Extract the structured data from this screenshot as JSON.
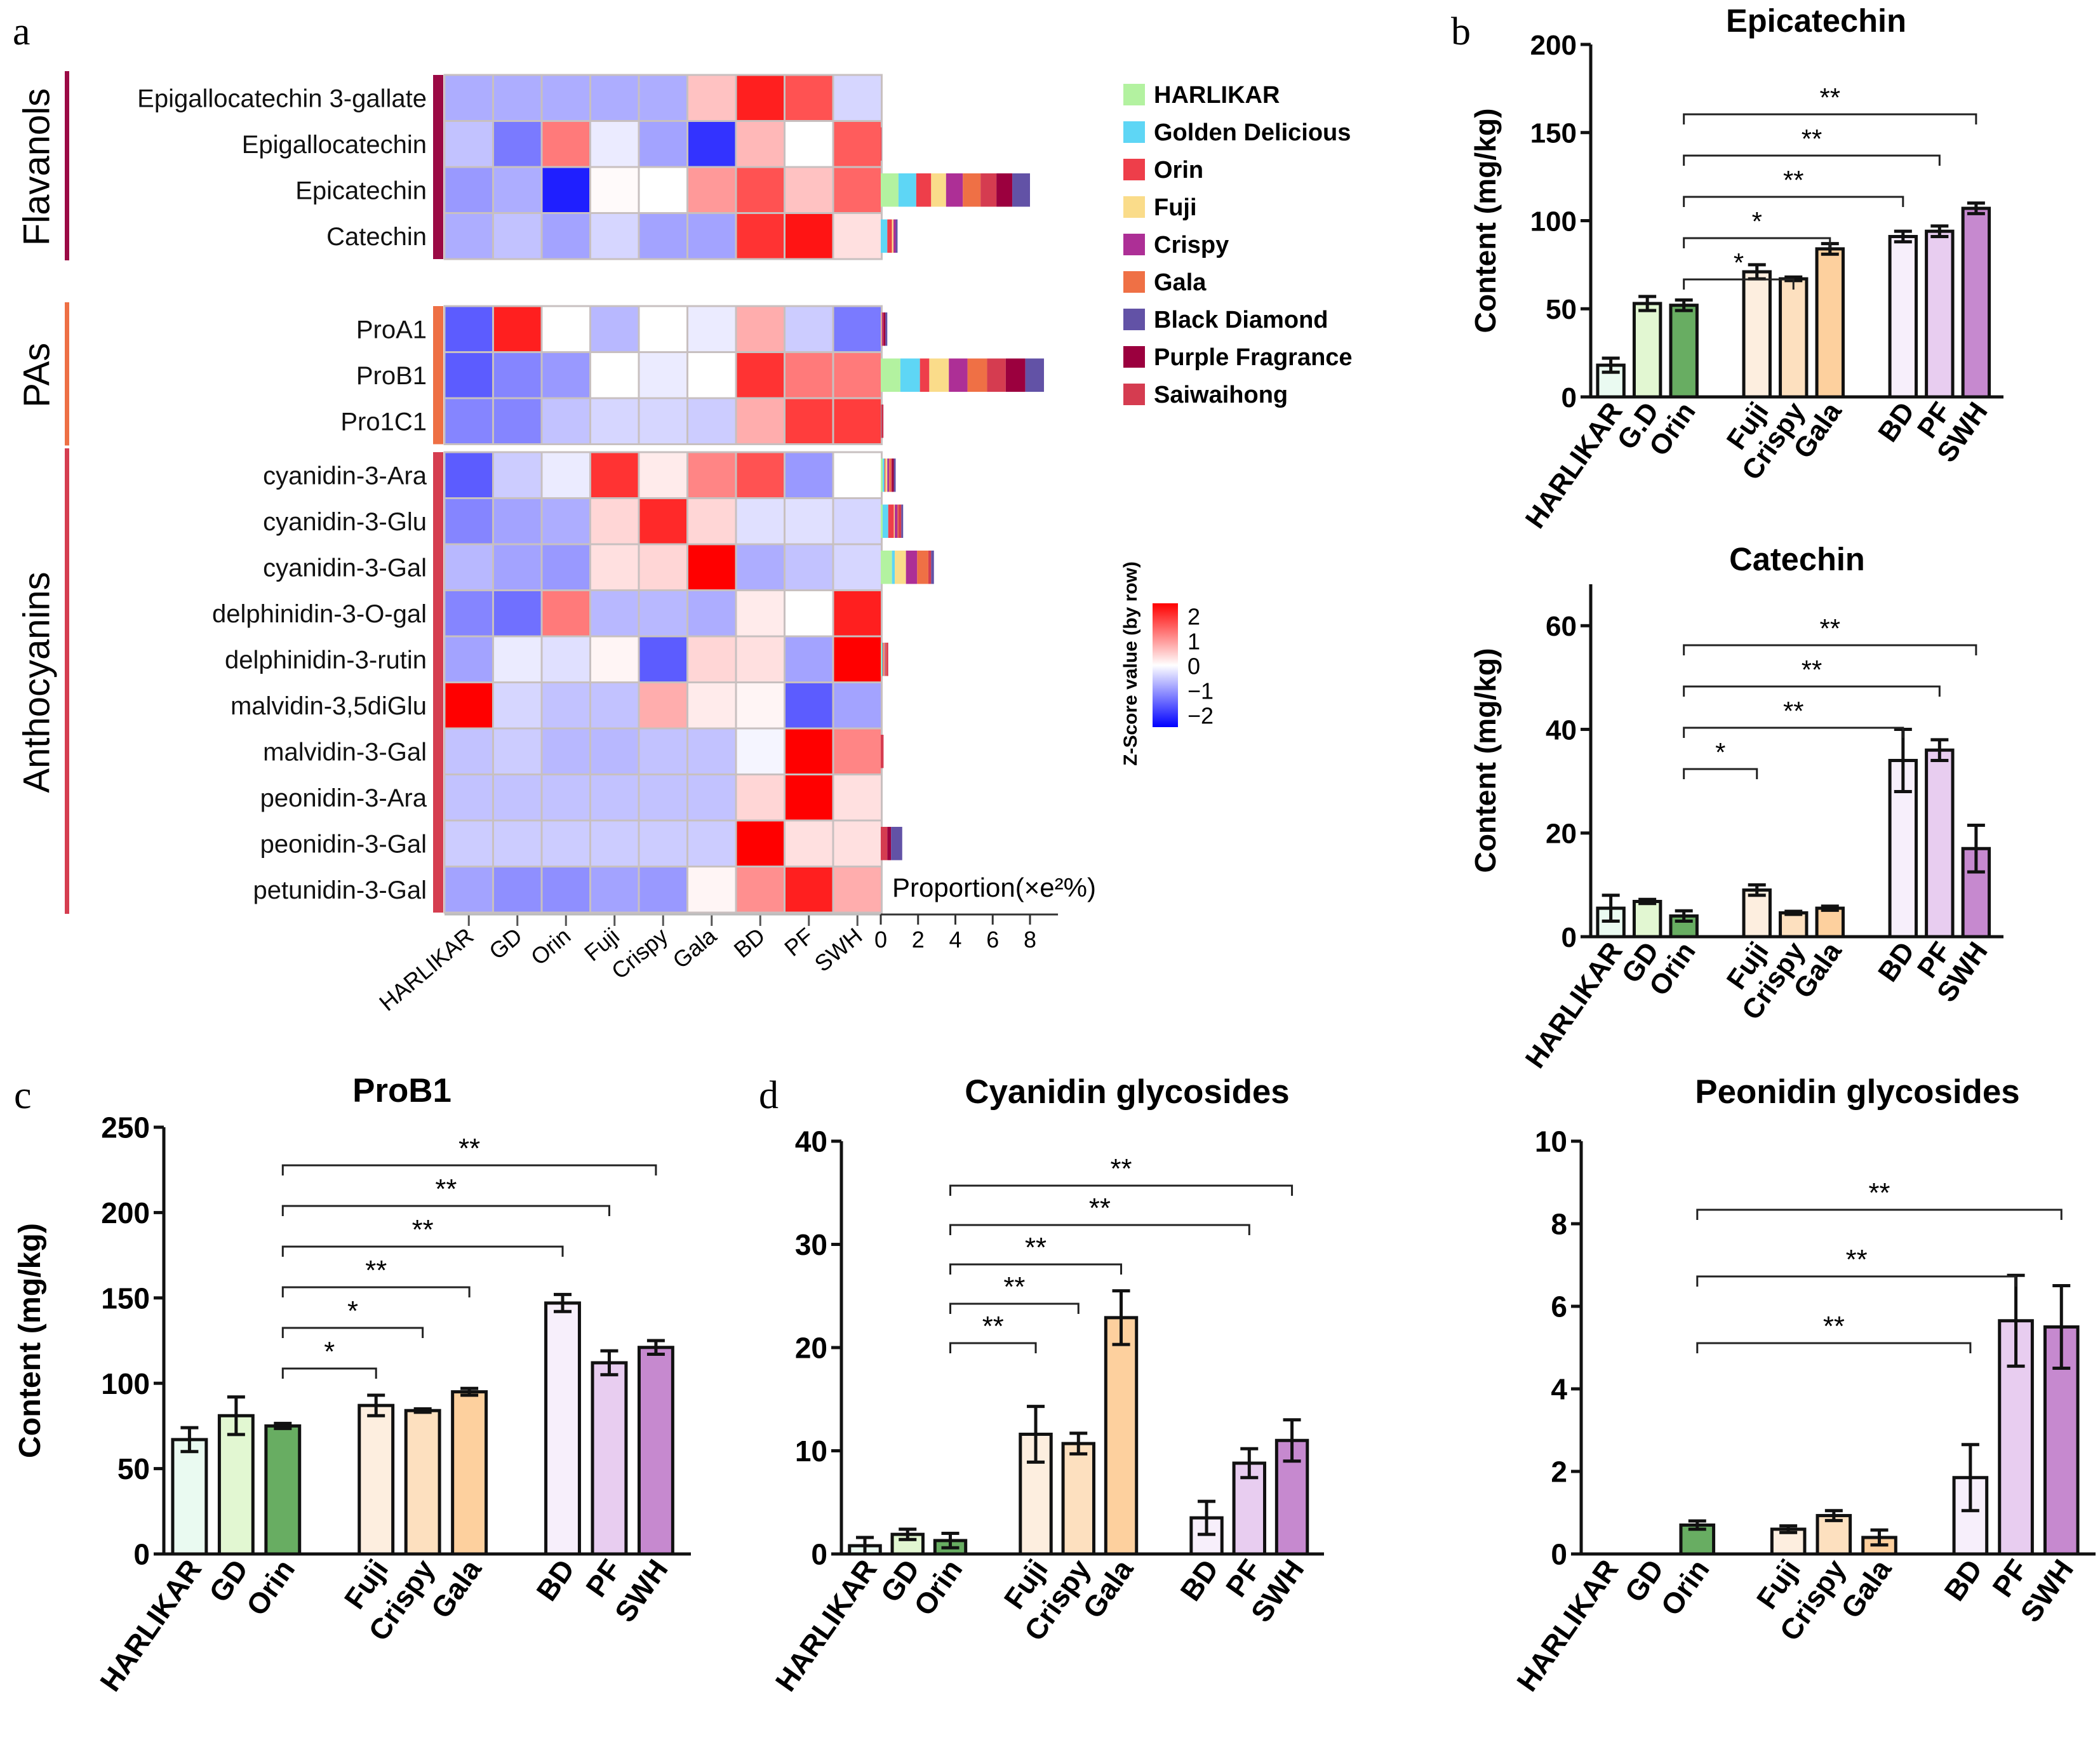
{
  "panel_labels": {
    "a": "a",
    "b": "b",
    "c": "c",
    "d": "d"
  },
  "chart_data": [
    {
      "type": "heatmap",
      "panel": "a",
      "title": "",
      "columns": [
        "HARLIKAR",
        "GD",
        "Orin",
        "Fuji",
        "Crispy",
        "Gala",
        "BD",
        "PF",
        "SWH"
      ],
      "groups": [
        {
          "name": "Flavanols",
          "color": "#9b0a45",
          "rows": [
            "Epigallocatechin 3-gallate",
            "Epigallocatechin",
            "Epicatechin",
            "Catechin"
          ]
        },
        {
          "name": "PAs",
          "color": "#ee7045",
          "rows": [
            "ProA1",
            "ProB1",
            "Pro1C1"
          ]
        },
        {
          "name": "Anthocyanins",
          "color": "#d53e50",
          "rows": [
            "cyanidin-3-Ara",
            "cyanidin-3-Glu",
            "cyanidin-3-Gal",
            "delphinidin-3-O-gal",
            "delphinidin-3-rutin",
            "malvidin-3,5diGlu",
            "malvidin-3-Gal",
            "peonidin-3-Ara",
            "peonidin-3-Gal",
            "petunidin-3-Gal"
          ]
        }
      ],
      "z_values": [
        [
          -0.8,
          -0.8,
          -0.8,
          -0.8,
          -0.8,
          0.6,
          2.2,
          1.7,
          -0.4
        ],
        [
          -0.6,
          -1.3,
          1.3,
          -0.2,
          -0.9,
          -2.0,
          0.7,
          0.0,
          1.6
        ],
        [
          -1.0,
          -0.8,
          -2.2,
          0.05,
          0.0,
          1.0,
          1.7,
          0.6,
          1.5
        ],
        [
          -0.8,
          -0.6,
          -0.9,
          -0.4,
          -0.9,
          -0.9,
          2.0,
          2.3,
          0.3
        ],
        [
          -1.6,
          2.2,
          0.0,
          -0.7,
          0.0,
          -0.2,
          0.8,
          -0.5,
          -1.3
        ],
        [
          -1.6,
          -1.2,
          -1.0,
          0.0,
          -0.2,
          0.0,
          2.0,
          1.3,
          1.3
        ],
        [
          -1.2,
          -1.2,
          -0.6,
          -0.4,
          -0.4,
          -0.5,
          0.8,
          1.9,
          1.9
        ],
        [
          -1.6,
          -0.5,
          -0.2,
          2.0,
          0.2,
          1.2,
          1.7,
          -1.0,
          0.0
        ],
        [
          -1.2,
          -0.9,
          -0.8,
          0.4,
          2.1,
          0.4,
          -0.3,
          -0.3,
          -0.4
        ],
        [
          -0.7,
          -0.9,
          -1.0,
          0.3,
          0.4,
          2.5,
          -0.8,
          -0.6,
          -0.4
        ],
        [
          -1.2,
          -1.4,
          1.3,
          -0.7,
          -0.7,
          -0.8,
          0.2,
          0.0,
          2.2
        ],
        [
          -0.9,
          -0.2,
          -0.3,
          0.1,
          -1.6,
          0.4,
          0.3,
          -0.9,
          2.5
        ],
        [
          2.5,
          -0.4,
          -0.6,
          -0.6,
          0.8,
          0.2,
          0.1,
          -1.6,
          -0.9
        ],
        [
          -0.6,
          -0.5,
          -0.7,
          -0.7,
          -0.6,
          -0.6,
          -0.1,
          2.5,
          1.2
        ],
        [
          -0.6,
          -0.6,
          -0.6,
          -0.6,
          -0.6,
          -0.6,
          0.4,
          2.5,
          0.3
        ],
        [
          -0.5,
          -0.5,
          -0.5,
          -0.5,
          -0.5,
          -0.5,
          2.5,
          0.3,
          0.3
        ],
        [
          -0.9,
          -1.1,
          -1.1,
          -0.9,
          -1.0,
          0.1,
          1.1,
          2.2,
          0.8
        ]
      ],
      "colorbar": {
        "title": "Z-Score value (by row)",
        "ticks": [
          2,
          1,
          0,
          -1,
          -2
        ],
        "range": [
          -2.5,
          2.5
        ],
        "low": "#0000ff",
        "mid": "#ffffff",
        "high": "#ff0000"
      },
      "proportion_axis": {
        "label": "Proportion(×e²%)",
        "ticks": [
          0,
          2,
          4,
          6,
          8
        ],
        "range": [
          0,
          9.5
        ]
      },
      "proportion_bars": [
        [
          0,
          0,
          0,
          0,
          0,
          0,
          0,
          0,
          0
        ],
        [
          0,
          0,
          0.02,
          0,
          0,
          0,
          0,
          0,
          0.02
        ],
        [
          0.95,
          0.95,
          0.8,
          0.8,
          0.9,
          0.95,
          0.95,
          0.85,
          0.85
        ],
        [
          0,
          0.35,
          0.25,
          0.08,
          0.12,
          0,
          0.1,
          0,
          0
        ],
        [
          0,
          0,
          0,
          0.05,
          0.05,
          0,
          0.1,
          0.1,
          0.05
        ],
        [
          1.05,
          1.05,
          0.5,
          1.05,
          1.0,
          1.05,
          1.0,
          1.05,
          1.0
        ],
        [
          0,
          0.02,
          0,
          0,
          0,
          0,
          0,
          0.02,
          0.1
        ],
        [
          0.1,
          0.1,
          0.05,
          0.1,
          0.1,
          0.1,
          0.1,
          0.1,
          0.05
        ],
        [
          0.1,
          0.3,
          0.3,
          0.05,
          0.15,
          0.05,
          0.1,
          0,
          0.15
        ],
        [
          0.6,
          0.15,
          0,
          0.6,
          0.6,
          0.6,
          0.15,
          0,
          0.15
        ],
        [
          0,
          0,
          0,
          0,
          0,
          0,
          0,
          0,
          0
        ],
        [
          0.05,
          0.05,
          0.05,
          0.05,
          0.05,
          0.05,
          0,
          0,
          0.1
        ],
        [
          0,
          0,
          0,
          0,
          0,
          0,
          0,
          0,
          0
        ],
        [
          0,
          0,
          0,
          0,
          0,
          0,
          0,
          0,
          0.15
        ],
        [
          0,
          0,
          0,
          0,
          0,
          0,
          0,
          0,
          0
        ],
        [
          0,
          0,
          0,
          0,
          0,
          0,
          0.6,
          0.2,
          0.35
        ],
        [
          0,
          0,
          0,
          0,
          0,
          0,
          0,
          0,
          0
        ]
      ],
      "legend": {
        "position": "right",
        "entries": [
          {
            "label": "HARLIKAR",
            "color": "#b3f2a0"
          },
          {
            "label": "Golden Delicious",
            "color": "#5ed6f5"
          },
          {
            "label": "Orin",
            "color": "#ee3e4a"
          },
          {
            "label": "Fuji",
            "color": "#fadc8a"
          },
          {
            "label": "Crispy",
            "color": "#ad2f96"
          },
          {
            "label": "Gala",
            "color": "#ef7045"
          },
          {
            "label": "Black Diamond",
            "color": "#6252a6"
          },
          {
            "label": "Purple Fragrance",
            "color": "#9b003e"
          },
          {
            "label": "Saiwaihong",
            "color": "#d53c50"
          }
        ]
      },
      "stack_order": [
        0,
        1,
        2,
        3,
        4,
        5,
        8,
        7,
        6
      ]
    },
    {
      "type": "bar",
      "panel": "b",
      "title": "Epicatechin",
      "ylabel": "Content (mg/kg)",
      "xlabel": "",
      "categories": [
        "HARLIKAR",
        "G.D",
        "Orin",
        "Fuji",
        "Crispy",
        "Gala",
        "BD",
        "PF",
        "SWH"
      ],
      "values": [
        18,
        53,
        52,
        71,
        67,
        84,
        91,
        94,
        107
      ],
      "errors": [
        4,
        4,
        3,
        4,
        1,
        3,
        3,
        3,
        3
      ],
      "ylim": [
        0,
        200
      ],
      "yticks": [
        0,
        50,
        100,
        150,
        200
      ],
      "significance": [
        {
          "from": "Orin",
          "to": "Crispy",
          "label": "*"
        },
        {
          "from": "Orin",
          "to": "Gala",
          "label": "*"
        },
        {
          "from": "Orin",
          "to": "BD",
          "label": "**"
        },
        {
          "from": "Orin",
          "to": "PF",
          "label": "**"
        },
        {
          "from": "Orin",
          "to": "SWH",
          "label": "**"
        }
      ]
    },
    {
      "type": "bar",
      "panel": "b",
      "title": "Catechin",
      "ylabel": "Content (mg/kg)",
      "xlabel": "",
      "categories": [
        "HARLIKAR",
        "GD",
        "Orin",
        "Fuji",
        "Crispy",
        "Gala",
        "BD",
        "PF",
        "SWH"
      ],
      "values": [
        5.5,
        6.8,
        4.0,
        9.0,
        4.6,
        5.5,
        34,
        36,
        17
      ],
      "errors": [
        2.5,
        0.4,
        1.0,
        1.0,
        0.3,
        0.4,
        6,
        2,
        4.5
      ],
      "ylim": [
        0,
        68
      ],
      "yticks": [
        0,
        20,
        40,
        60
      ],
      "significance": [
        {
          "from": "Orin",
          "to": "Fuji",
          "label": "*"
        },
        {
          "from": "Orin",
          "to": "BD",
          "label": "**"
        },
        {
          "from": "Orin",
          "to": "PF",
          "label": "**"
        },
        {
          "from": "Orin",
          "to": "SWH",
          "label": "**"
        }
      ]
    },
    {
      "type": "bar",
      "panel": "c",
      "title": "ProB1",
      "ylabel": "Content (mg/kg)",
      "xlabel": "",
      "categories": [
        "HARLIKAR",
        "GD",
        "Orin",
        "Fuji",
        "Crispy",
        "Gala",
        "BD",
        "PF",
        "SWH"
      ],
      "values": [
        67,
        81,
        75,
        87,
        84,
        95,
        147,
        112,
        121
      ],
      "errors": [
        7,
        11,
        1.5,
        6,
        1,
        2,
        5,
        7,
        4
      ],
      "ylim": [
        0,
        250
      ],
      "yticks": [
        0,
        50,
        100,
        150,
        200,
        250
      ],
      "significance": [
        {
          "from": "Orin",
          "to": "Fuji",
          "label": "*"
        },
        {
          "from": "Orin",
          "to": "Crispy",
          "label": "*"
        },
        {
          "from": "Orin",
          "to": "Gala",
          "label": "**"
        },
        {
          "from": "Orin",
          "to": "BD",
          "label": "**"
        },
        {
          "from": "Orin",
          "to": "PF",
          "label": "**"
        },
        {
          "from": "Orin",
          "to": "SWH",
          "label": "**"
        }
      ]
    },
    {
      "type": "bar",
      "panel": "d",
      "title": "Cyanidin glycosides",
      "ylabel": "",
      "xlabel": "",
      "categories": [
        "HARLIKAR",
        "GD",
        "Orin",
        "Fuji",
        "Crispy",
        "Gala",
        "BD",
        "PF",
        "SWH"
      ],
      "values": [
        0.8,
        1.9,
        1.3,
        11.6,
        10.7,
        22.9,
        3.5,
        8.8,
        11.0
      ],
      "errors": [
        0.8,
        0.5,
        0.7,
        2.7,
        1.0,
        2.6,
        1.6,
        1.4,
        2.0
      ],
      "ylim": [
        0,
        40
      ],
      "yticks": [
        0,
        10,
        20,
        30,
        40
      ],
      "significance": [
        {
          "from": "Orin",
          "to": "Fuji",
          "label": "**"
        },
        {
          "from": "Orin",
          "to": "Crispy",
          "label": "**"
        },
        {
          "from": "Orin",
          "to": "Gala",
          "label": "**"
        },
        {
          "from": "Orin",
          "to": "PF",
          "label": "**"
        },
        {
          "from": "Orin",
          "to": "SWH",
          "label": "**"
        }
      ]
    },
    {
      "type": "bar",
      "panel": "d",
      "title": "Peonidin glycosides",
      "ylabel": "",
      "xlabel": "",
      "categories": [
        "HARLIKAR",
        "GD",
        "Orin",
        "Fuji",
        "Crispy",
        "Gala",
        "BD",
        "PF",
        "SWH"
      ],
      "values": [
        0,
        0,
        0.7,
        0.6,
        0.93,
        0.4,
        1.85,
        5.65,
        5.5
      ],
      "errors": [
        0,
        0,
        0.1,
        0.08,
        0.12,
        0.18,
        0.8,
        1.1,
        1.0
      ],
      "ylim": [
        0,
        10
      ],
      "yticks": [
        0,
        2,
        4,
        6,
        8,
        10
      ],
      "significance": [
        {
          "from": "Orin",
          "to": "BD",
          "label": "**"
        },
        {
          "from": "Orin",
          "to": "PF",
          "label": "**"
        },
        {
          "from": "Orin",
          "to": "SWH",
          "label": "**"
        }
      ]
    }
  ],
  "bar_colors": [
    "#eafaf1",
    "#e2f7d2",
    "#68ad62",
    "#fdeedf",
    "#fde0bf",
    "#fdd09e",
    "#f7effb",
    "#e8cdf0",
    "#c689cf"
  ]
}
